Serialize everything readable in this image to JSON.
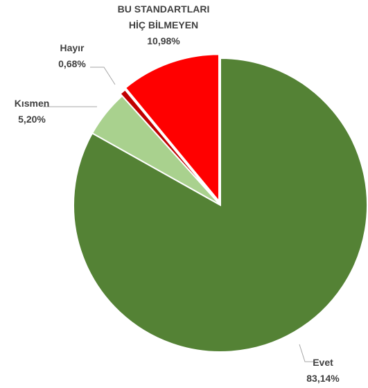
{
  "chart_data": {
    "type": "pie",
    "categories": [
      "Evet",
      "Kısmen",
      "Hayır",
      "BU STANDARTLARI HİÇ BİLMEYEN"
    ],
    "values": [
      83.14,
      5.2,
      0.68,
      10.98
    ],
    "value_labels": [
      "83,14%",
      "5,20%",
      "0,68%",
      "10,98%"
    ],
    "colors": [
      "#548235",
      "#a9d18e",
      "#c00000",
      "#ff0000"
    ]
  }
}
